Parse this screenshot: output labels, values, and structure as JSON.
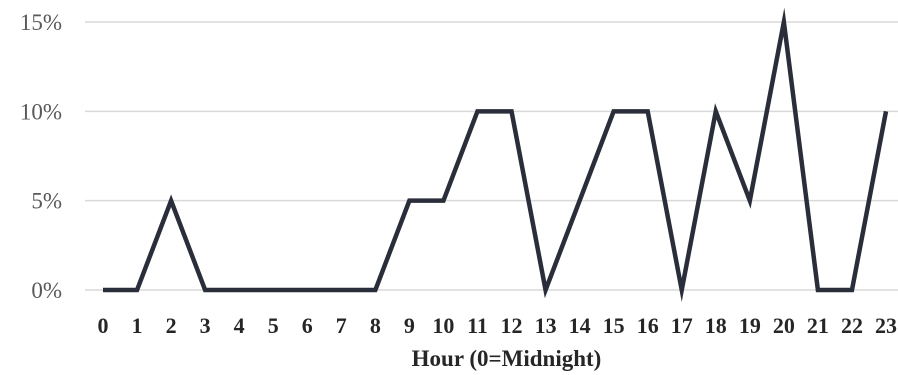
{
  "chart_data": {
    "type": "line",
    "title": "",
    "xlabel": "Hour (0=Midnight)",
    "ylabel": "",
    "x": [
      "0",
      "1",
      "2",
      "3",
      "4",
      "5",
      "6",
      "7",
      "8",
      "9",
      "10",
      "11",
      "12",
      "13",
      "14",
      "15",
      "16",
      "17",
      "18",
      "19",
      "20",
      "21",
      "22",
      "23"
    ],
    "series": [
      {
        "values": [
          0,
          0,
          5,
          0,
          0,
          0,
          0,
          0,
          0,
          5,
          5,
          10,
          10,
          0,
          5,
          10,
          10,
          0,
          10,
          5,
          15,
          0,
          0,
          10
        ],
        "color": "#2a2e3a"
      }
    ],
    "ylim": [
      0,
      15
    ],
    "yticks": [
      0,
      5,
      10,
      15
    ],
    "ytick_labels": [
      "0%",
      "5%",
      "10%",
      "15%"
    ],
    "grid": true,
    "legend": "none"
  }
}
